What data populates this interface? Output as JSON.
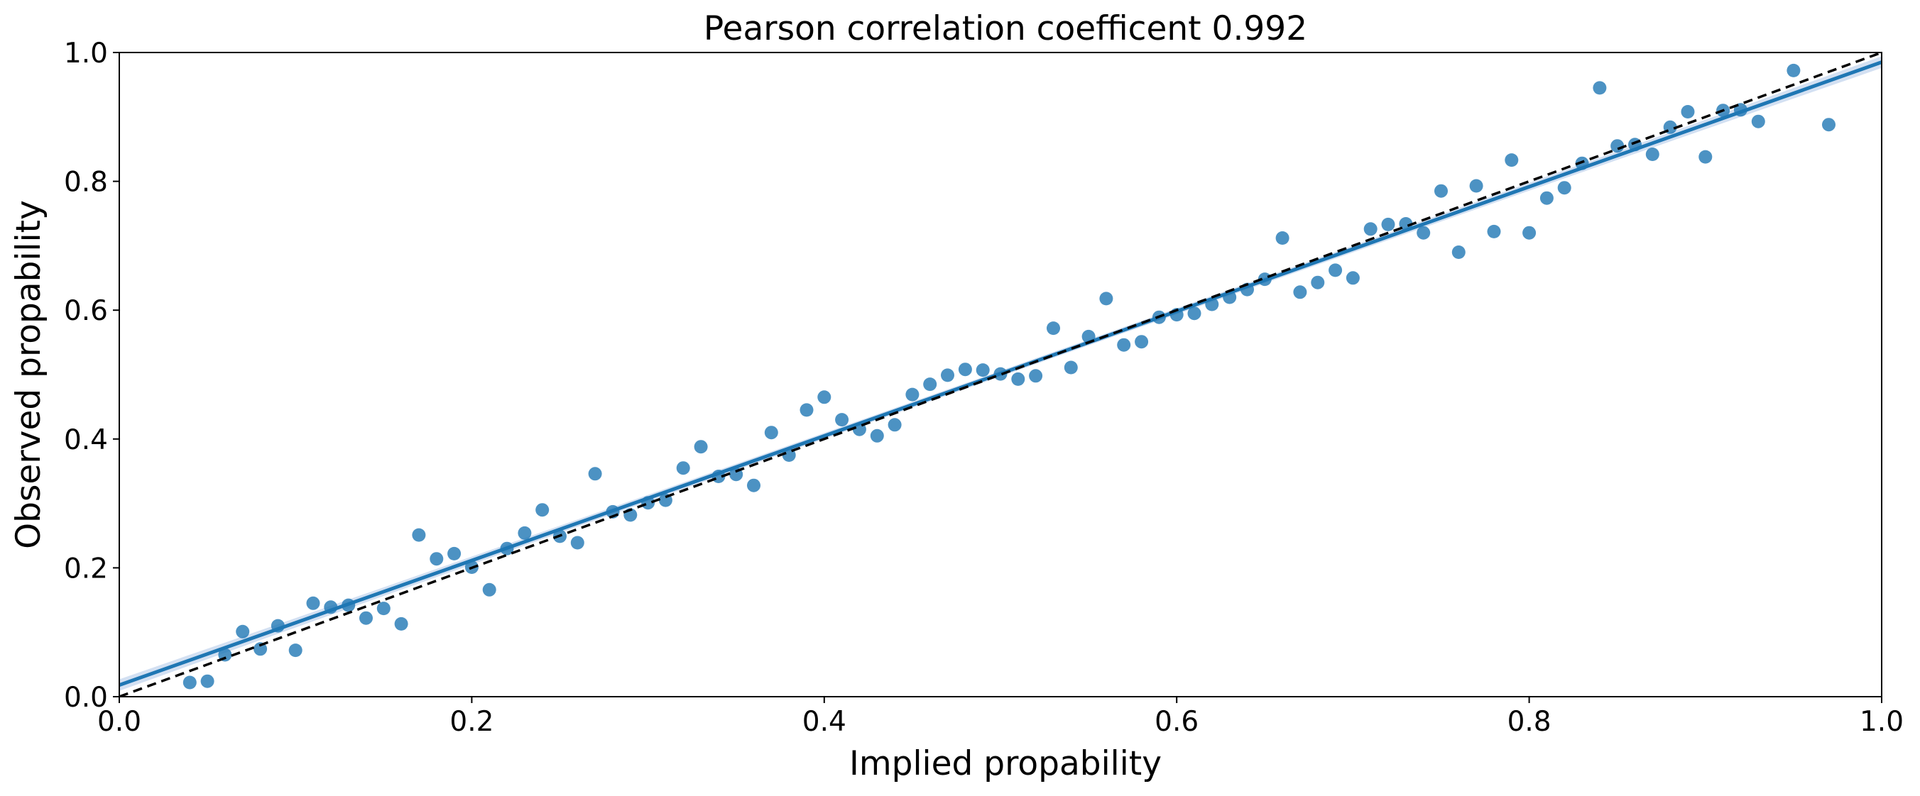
{
  "chart_data": {
    "type": "scatter",
    "title": "Pearson correlation coefficent 0.992",
    "xlabel": "Implied propability",
    "ylabel": "Observed propability",
    "xlim": [
      0.0,
      1.0
    ],
    "ylim": [
      0.0,
      1.0
    ],
    "xticks": [
      "0.0",
      "0.2",
      "0.4",
      "0.6",
      "0.8",
      "1.0"
    ],
    "yticks": [
      "0.0",
      "0.2",
      "0.4",
      "0.6",
      "0.8",
      "1.0"
    ],
    "grid": false,
    "colors": {
      "points": "#1f77b4",
      "regression_line": "#1f77b4",
      "confidence_band": "#aec7e8",
      "reference_line": "#000000"
    },
    "regression_line": {
      "intercept": 0.018,
      "slope": 0.967
    },
    "reference_line": {
      "from": [
        0.0,
        0.0
      ],
      "to": [
        1.0,
        1.0
      ],
      "style": "dashed"
    },
    "series": [
      {
        "points": [
          [
            0.04,
            0.022
          ],
          [
            0.05,
            0.024
          ],
          [
            0.06,
            0.065
          ],
          [
            0.07,
            0.101
          ],
          [
            0.08,
            0.074
          ],
          [
            0.09,
            0.11
          ],
          [
            0.1,
            0.072
          ],
          [
            0.11,
            0.145
          ],
          [
            0.12,
            0.139
          ],
          [
            0.13,
            0.142
          ],
          [
            0.14,
            0.122
          ],
          [
            0.15,
            0.137
          ],
          [
            0.16,
            0.113
          ],
          [
            0.17,
            0.251
          ],
          [
            0.18,
            0.214
          ],
          [
            0.19,
            0.222
          ],
          [
            0.2,
            0.201
          ],
          [
            0.21,
            0.166
          ],
          [
            0.22,
            0.23
          ],
          [
            0.23,
            0.254
          ],
          [
            0.24,
            0.29
          ],
          [
            0.25,
            0.249
          ],
          [
            0.26,
            0.239
          ],
          [
            0.27,
            0.346
          ],
          [
            0.28,
            0.287
          ],
          [
            0.29,
            0.282
          ],
          [
            0.3,
            0.301
          ],
          [
            0.31,
            0.305
          ],
          [
            0.32,
            0.355
          ],
          [
            0.33,
            0.388
          ],
          [
            0.34,
            0.342
          ],
          [
            0.35,
            0.345
          ],
          [
            0.36,
            0.328
          ],
          [
            0.37,
            0.41
          ],
          [
            0.38,
            0.375
          ],
          [
            0.39,
            0.445
          ],
          [
            0.4,
            0.465
          ],
          [
            0.41,
            0.43
          ],
          [
            0.42,
            0.415
          ],
          [
            0.43,
            0.405
          ],
          [
            0.44,
            0.422
          ],
          [
            0.45,
            0.469
          ],
          [
            0.46,
            0.485
          ],
          [
            0.47,
            0.499
          ],
          [
            0.48,
            0.508
          ],
          [
            0.49,
            0.507
          ],
          [
            0.5,
            0.501
          ],
          [
            0.51,
            0.493
          ],
          [
            0.52,
            0.498
          ],
          [
            0.53,
            0.572
          ],
          [
            0.54,
            0.511
          ],
          [
            0.55,
            0.559
          ],
          [
            0.56,
            0.618
          ],
          [
            0.57,
            0.546
          ],
          [
            0.58,
            0.551
          ],
          [
            0.59,
            0.589
          ],
          [
            0.6,
            0.593
          ],
          [
            0.61,
            0.595
          ],
          [
            0.62,
            0.609
          ],
          [
            0.63,
            0.62
          ],
          [
            0.64,
            0.632
          ],
          [
            0.65,
            0.648
          ],
          [
            0.66,
            0.712
          ],
          [
            0.67,
            0.628
          ],
          [
            0.68,
            0.643
          ],
          [
            0.69,
            0.662
          ],
          [
            0.7,
            0.65
          ],
          [
            0.71,
            0.726
          ],
          [
            0.72,
            0.733
          ],
          [
            0.73,
            0.734
          ],
          [
            0.74,
            0.72
          ],
          [
            0.75,
            0.785
          ],
          [
            0.76,
            0.69
          ],
          [
            0.77,
            0.793
          ],
          [
            0.78,
            0.722
          ],
          [
            0.79,
            0.833
          ],
          [
            0.8,
            0.72
          ],
          [
            0.81,
            0.774
          ],
          [
            0.82,
            0.79
          ],
          [
            0.83,
            0.828
          ],
          [
            0.84,
            0.945
          ],
          [
            0.85,
            0.855
          ],
          [
            0.86,
            0.857
          ],
          [
            0.87,
            0.842
          ],
          [
            0.88,
            0.884
          ],
          [
            0.89,
            0.908
          ],
          [
            0.9,
            0.838
          ],
          [
            0.91,
            0.91
          ],
          [
            0.92,
            0.911
          ],
          [
            0.93,
            0.893
          ],
          [
            0.95,
            0.972
          ],
          [
            0.97,
            0.888
          ]
        ]
      }
    ]
  }
}
